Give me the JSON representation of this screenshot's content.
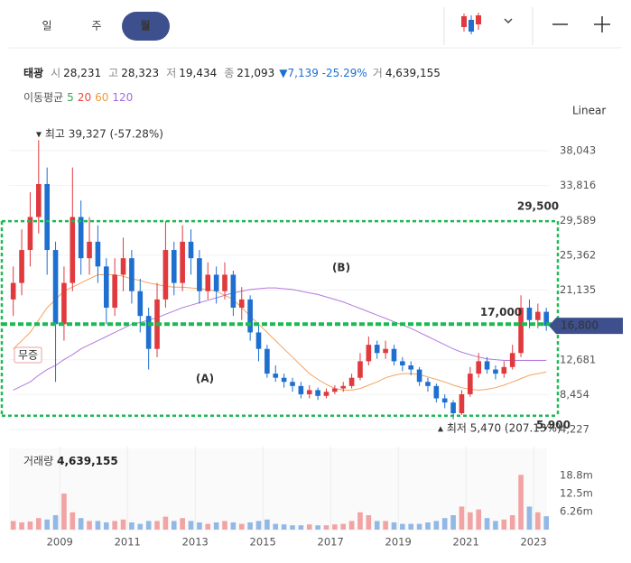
{
  "header": {
    "tabs": [
      "일",
      "주",
      "월"
    ],
    "active_tab": 2
  },
  "info": {
    "name": "태광",
    "items": [
      {
        "label": "시",
        "value": "28,231"
      },
      {
        "label": "고",
        "value": "28,323"
      },
      {
        "label": "저",
        "value": "19,434"
      },
      {
        "label": "종",
        "value": "21,093"
      }
    ],
    "change": "▼7,139 -25.29%",
    "volume_label": "거",
    "volume": "4,639,155"
  },
  "moving_average_legend": {
    "label": "이동평균",
    "periods": [
      {
        "name": "5",
        "color": "#2eaa4a"
      },
      {
        "name": "20",
        "color": "#e8493d"
      },
      {
        "name": "60",
        "color": "#f29b38"
      },
      {
        "name": "120",
        "color": "#a36cdf"
      }
    ]
  },
  "scale_mode": "Linear",
  "chart_data": [
    {
      "type": "candlestick",
      "x": [
        2007.625,
        2007.875,
        2008.125,
        2008.375,
        2008.625,
        2008.875,
        2009.125,
        2009.375,
        2009.625,
        2009.875,
        2010.125,
        2010.375,
        2010.625,
        2010.875,
        2011.125,
        2011.375,
        2011.625,
        2011.875,
        2012.125,
        2012.375,
        2012.625,
        2012.875,
        2013.125,
        2013.375,
        2013.625,
        2013.875,
        2014.125,
        2014.375,
        2014.625,
        2014.875,
        2015.125,
        2015.375,
        2015.625,
        2015.875,
        2016.125,
        2016.375,
        2016.625,
        2016.875,
        2017.125,
        2017.375,
        2017.625,
        2017.875,
        2018.125,
        2018.375,
        2018.625,
        2018.875,
        2019.125,
        2019.375,
        2019.625,
        2019.875,
        2020.125,
        2020.375,
        2020.625,
        2020.875,
        2021.125,
        2021.375,
        2021.625,
        2021.875,
        2022.125,
        2022.375,
        2022.625,
        2022.875,
        2023.125,
        2023.375
      ],
      "open": [
        20000,
        22000,
        26000,
        30000,
        34000,
        26000,
        17000,
        22000,
        30000,
        25000,
        27000,
        24000,
        19000,
        23000,
        25000,
        21000,
        18000,
        14000,
        20000,
        26000,
        22000,
        27000,
        25000,
        21000,
        23000,
        21000,
        23000,
        19000,
        20000,
        16000,
        14000,
        11000,
        10500,
        10000,
        9500,
        8500,
        9000,
        8300,
        8800,
        9200,
        9500,
        10500,
        12500,
        14500,
        13500,
        14000,
        12500,
        12000,
        11500,
        10000,
        9500,
        8000,
        7500,
        6200,
        8500,
        11000,
        12500,
        11500,
        11000,
        11800,
        13500,
        19000,
        17500,
        18500
      ],
      "high": [
        24000,
        28500,
        33000,
        39327,
        36000,
        27000,
        24000,
        36000,
        32000,
        30000,
        29000,
        25000,
        25000,
        27500,
        26000,
        22500,
        19000,
        22000,
        29500,
        27000,
        29000,
        28500,
        26000,
        24500,
        24000,
        24500,
        23500,
        21500,
        20500,
        17000,
        14500,
        12000,
        11000,
        10500,
        10000,
        9600,
        9300,
        9200,
        9600,
        10000,
        11000,
        13500,
        15500,
        15000,
        15000,
        14500,
        13000,
        12500,
        11800,
        10500,
        9800,
        8500,
        7800,
        9000,
        11800,
        13500,
        13000,
        12000,
        12500,
        14500,
        20500,
        20000,
        19500,
        19000
      ],
      "low": [
        18000,
        20500,
        24000,
        28000,
        23000,
        10000,
        15000,
        21000,
        23000,
        23000,
        22000,
        17000,
        18000,
        21000,
        19500,
        16000,
        11500,
        13000,
        19000,
        20500,
        21000,
        23000,
        19500,
        20000,
        19500,
        20000,
        18000,
        17500,
        15000,
        12500,
        10500,
        10000,
        9300,
        8800,
        8000,
        8000,
        7800,
        8000,
        8500,
        8800,
        9200,
        10200,
        12000,
        12800,
        12800,
        12000,
        11300,
        10800,
        9500,
        8800,
        7500,
        6800,
        5470,
        6000,
        8200,
        10500,
        11000,
        10300,
        10500,
        11500,
        13000,
        16500,
        16500,
        16200
      ],
      "close": [
        22000,
        26000,
        30000,
        34000,
        26000,
        17000,
        22000,
        30000,
        25000,
        27000,
        24000,
        19000,
        23000,
        25000,
        21000,
        18000,
        14000,
        20000,
        26000,
        22000,
        27000,
        25000,
        21000,
        23000,
        21000,
        23000,
        19000,
        20000,
        16000,
        14000,
        11000,
        10500,
        10000,
        9500,
        8500,
        9000,
        8300,
        8800,
        9200,
        9500,
        10500,
        12500,
        14500,
        13500,
        14000,
        12500,
        12000,
        11500,
        10000,
        9500,
        8000,
        7500,
        6200,
        8500,
        11000,
        12500,
        11500,
        11000,
        11800,
        13500,
        19000,
        17500,
        18500,
        16800
      ],
      "up_color": "#e0393e",
      "down_color": "#1e6fd0",
      "moving_averages": [
        {
          "name": "60",
          "color": "#f4a460",
          "values": [
            14000,
            15000,
            16000,
            17500,
            19000,
            20000,
            21000,
            21500,
            22000,
            22500,
            23000,
            23000,
            23000,
            22800,
            22500,
            22300,
            22000,
            21800,
            21600,
            21500,
            21500,
            21400,
            21300,
            21200,
            21000,
            20500,
            20000,
            19000,
            18000,
            17000,
            16000,
            15000,
            14000,
            13000,
            12000,
            11000,
            10300,
            9700,
            9200,
            9000,
            9000,
            9200,
            9600,
            10000,
            10500,
            10800,
            11000,
            11000,
            10900,
            10600,
            10300,
            10000,
            9600,
            9300,
            9100,
            9000,
            9100,
            9300,
            9600,
            10000,
            10400,
            10800,
            11000,
            11200
          ]
        },
        {
          "name": "120",
          "color": "#b27ae0",
          "values": [
            9000,
            9500,
            10000,
            10800,
            11500,
            12000,
            12700,
            13300,
            14000,
            14500,
            15000,
            15500,
            16000,
            16500,
            17000,
            17200,
            17500,
            17800,
            18200,
            18600,
            19000,
            19300,
            19600,
            19900,
            20200,
            20500,
            20800,
            21000,
            21200,
            21300,
            21400,
            21400,
            21300,
            21200,
            21000,
            20800,
            20600,
            20300,
            20000,
            19700,
            19300,
            18900,
            18500,
            18100,
            17700,
            17300,
            16900,
            16500,
            16000,
            15500,
            15000,
            14500,
            14000,
            13600,
            13300,
            13000,
            12800,
            12700,
            12600,
            12600,
            12600,
            12600,
            12600,
            12600
          ]
        }
      ],
      "xlim": [
        2007.5,
        2023.45
      ],
      "ylim": [
        3790,
        41000
      ],
      "yticks": [
        {
          "value": 4227,
          "label": "4,227"
        },
        {
          "value": 8454,
          "label": "8,454"
        },
        {
          "value": 12681,
          "label": "12,681"
        },
        {
          "value": 21135,
          "label": "21,135"
        },
        {
          "value": 25362,
          "label": "25,362"
        },
        {
          "value": 29589,
          "label": "29,589"
        },
        {
          "value": 33816,
          "label": "33,816"
        },
        {
          "value": 38043,
          "label": "38,043"
        }
      ],
      "last_price": {
        "value": 16800,
        "label": "16,800"
      },
      "levels": [
        {
          "value": 29500,
          "label": "29,500"
        },
        {
          "value": 17000,
          "label": "17,000"
        },
        {
          "value": 5900,
          "label": "5,900"
        }
      ],
      "level_color": "#1db954",
      "annotations": {
        "high": "▾ 최고 39,327 (-57.28%)",
        "low": "▴ 최저 5,470 (207.13%)",
        "zone_b": "(B)",
        "zone_a": "(A)",
        "event": "무증"
      }
    },
    {
      "type": "bar",
      "title": "거래량",
      "title_value": "4,639,155",
      "values": [
        3000000,
        2500000,
        2800000,
        4000000,
        3500000,
        5000000,
        12500000,
        6000000,
        4000000,
        3000000,
        3000000,
        2500000,
        3000000,
        3500000,
        2500000,
        2000000,
        3000000,
        3000000,
        4500000,
        3000000,
        4000000,
        3000000,
        2500000,
        2000000,
        2500000,
        3000000,
        2500000,
        2000000,
        2500000,
        3000000,
        3500000,
        2000000,
        1800000,
        1500000,
        1500000,
        1800000,
        1500000,
        1500000,
        1800000,
        2000000,
        3000000,
        6000000,
        5000000,
        3000000,
        3000000,
        2500000,
        2000000,
        2000000,
        2000000,
        2500000,
        3000000,
        4000000,
        5000000,
        8000000,
        6000000,
        7000000,
        4000000,
        3000000,
        3500000,
        5000000,
        19000000,
        8000000,
        6000000,
        4639155
      ],
      "up_color": "#f2a3a3",
      "down_color": "#92b8e6",
      "ylim": [
        0,
        28800000
      ],
      "yticks": [
        {
          "value": 6260000,
          "label": "6.26m"
        },
        {
          "value": 12500000,
          "label": "12.5m"
        },
        {
          "value": 18800000,
          "label": "18.8m"
        }
      ],
      "xticks": [
        2009,
        2011,
        2013,
        2015,
        2017,
        2019,
        2021,
        2023
      ]
    }
  ]
}
